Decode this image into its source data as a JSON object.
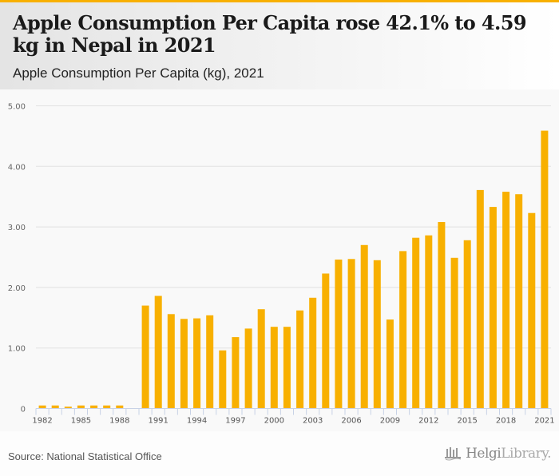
{
  "header": {
    "title": "Apple Consumption Per Capita rose 42.1% to 4.59 kg in Nepal in 2021",
    "subtitle": "Apple Consumption Per Capita (kg), 2021"
  },
  "footer": {
    "source": "Source: National Statistical Office",
    "logo_bold": "Helgi",
    "logo_light": "Library.",
    "logo_icon": "library-bars-icon"
  },
  "colors": {
    "accent": "#f8b000",
    "bar": "#f8b000",
    "grid": "#e2e2e2",
    "axis": "#c8d2e6"
  },
  "chart_data": {
    "type": "bar",
    "title": "Apple Consumption Per Capita rose 42.1% to 4.59 kg in Nepal in 2021",
    "subtitle": "Apple Consumption Per Capita (kg), 2021",
    "xlabel": "",
    "ylabel": "",
    "ylim": [
      0,
      5
    ],
    "yticks": [
      0,
      1,
      2,
      3,
      4,
      5
    ],
    "ytick_labels": [
      "0",
      "1.00",
      "2.00",
      "3.00",
      "4.00",
      "5.00"
    ],
    "grid": true,
    "legend": "none",
    "categories": [
      "1982",
      "1983",
      "1984",
      "1985",
      "1986",
      "1987",
      "1988",
      "1989",
      "1990",
      "1991",
      "1992",
      "1993",
      "1994",
      "1995",
      "1996",
      "1997",
      "1998",
      "1999",
      "2000",
      "2001",
      "2002",
      "2003",
      "2004",
      "2005",
      "2006",
      "2007",
      "2008",
      "2009",
      "2010",
      "2011",
      "2012",
      "2013",
      "2014",
      "2015",
      "2016",
      "2017",
      "2018",
      "2019",
      "2020",
      "2021"
    ],
    "xtick_labels": [
      "1982",
      "1985",
      "1988",
      "1991",
      "1994",
      "1997",
      "2000",
      "2003",
      "2006",
      "2009",
      "2012",
      "2015",
      "2018",
      "2021"
    ],
    "values": [
      0.05,
      0.05,
      0.03,
      0.05,
      0.05,
      0.05,
      0.05,
      null,
      1.7,
      1.86,
      1.56,
      1.48,
      1.49,
      1.54,
      0.96,
      1.18,
      1.32,
      1.64,
      1.35,
      1.35,
      1.62,
      1.83,
      2.23,
      2.46,
      2.47,
      2.7,
      2.45,
      1.47,
      2.6,
      2.82,
      2.86,
      3.08,
      2.49,
      2.78,
      3.61,
      3.33,
      3.58,
      3.54,
      3.23,
      4.59
    ]
  }
}
